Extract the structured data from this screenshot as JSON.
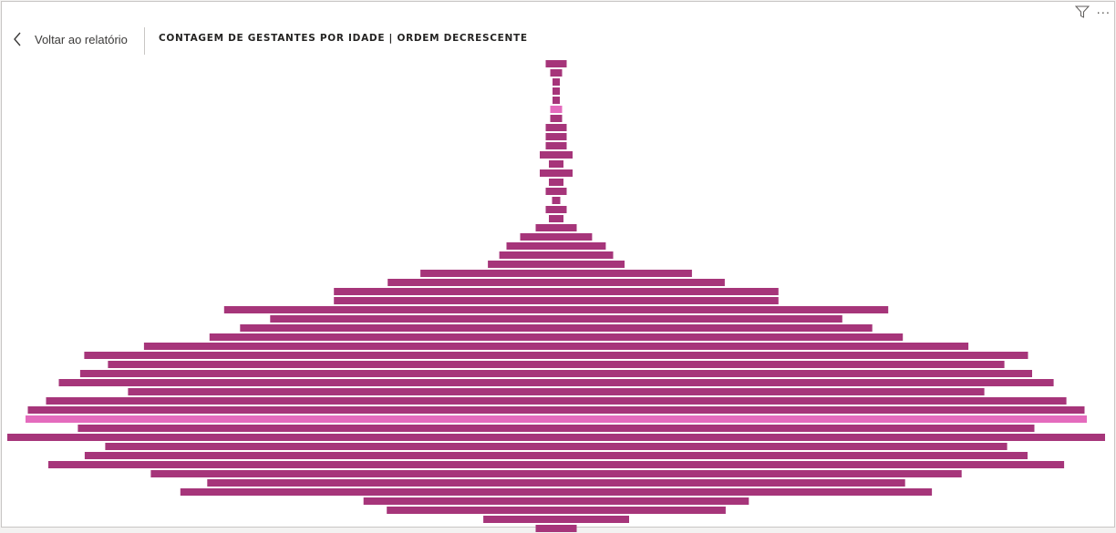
{
  "header": {
    "back_label": "Voltar ao relatório",
    "visual_title": "CONTAGEM DE GESTANTES POR IDADE | ORDEM DECRESCENTE",
    "icons": [
      "chevron-left-icon",
      "filter-icon",
      "more-options-icon"
    ]
  },
  "colors": {
    "bar": "#a6357a",
    "highlight": "#e46bbd",
    "divider": "#c8c6c4"
  },
  "chart_data": {
    "type": "bar",
    "orientation": "horizontal",
    "layout": "centered-funnel",
    "title": "CONTAGEM DE GESTANTES POR IDADE | ORDEM DECRESCENTE",
    "grid": false,
    "legend": "none",
    "series": [
      {
        "values": [
          23,
          13,
          8,
          8,
          8,
          13,
          13,
          23,
          23,
          23,
          36,
          16,
          36,
          16,
          23,
          9,
          23,
          16,
          45,
          79,
          109,
          125,
          150,
          298,
          370,
          488,
          488,
          729,
          628,
          694,
          761,
          905,
          1036,
          984,
          1045,
          1092,
          940,
          1120,
          1160,
          1165,
          1050,
          1205,
          990,
          1035,
          1115,
          890,
          766,
          825,
          423,
          372,
          160,
          45
        ]
      }
    ],
    "highlighted_indices": [
      5,
      39
    ]
  }
}
